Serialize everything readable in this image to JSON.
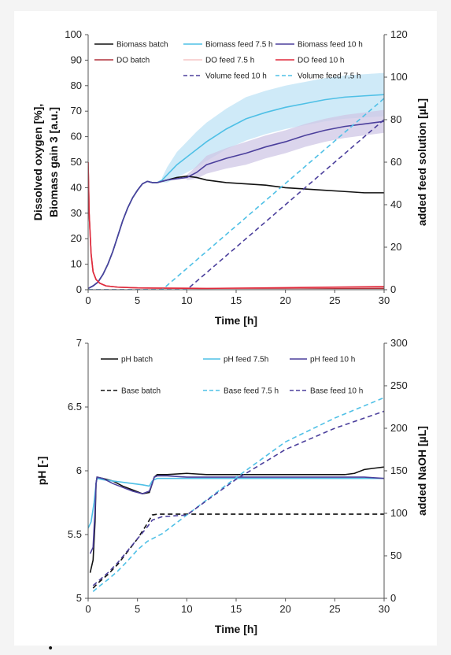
{
  "chart_data": [
    {
      "type": "line",
      "xlabel": "Time   [h]",
      "ylabel": [
        "Dissolved oxygen   [%],",
        "Biomass gain 3   [a.u.]"
      ],
      "y2label": "added feed solution   [µL]",
      "xlim": [
        0,
        30
      ],
      "ylim": [
        0,
        100
      ],
      "y2lim": [
        0,
        120
      ],
      "xticks": [
        0,
        5,
        10,
        15,
        20,
        25,
        30
      ],
      "yticks": [
        0,
        10,
        20,
        30,
        40,
        50,
        60,
        70,
        80,
        90,
        100
      ],
      "y2ticks": [
        0,
        20,
        40,
        60,
        80,
        100,
        120
      ],
      "legend_position": "top",
      "legend_rows": [
        [
          "Biomass batch",
          "Biomass feed 7.5 h",
          "Biomass feed 10 h"
        ],
        [
          "DO batch",
          "DO feed 7.5 h",
          "DO feed 10 h"
        ],
        [
          "",
          "Volume feed 10 h",
          "Volume feed 7.5 h"
        ]
      ],
      "colors": {
        "batch": "#111111",
        "feed75": "#4fc0e6",
        "feed10": "#4b3f9c",
        "do_batch": "#b0303a",
        "do75": "#f6c6c6",
        "do10": "#e0283a",
        "band75": "#bfe3f5",
        "band10": "#cfc7e6"
      },
      "series": [
        {
          "name": "Biomass batch",
          "axis": "left",
          "style": "solid",
          "color": "#111111",
          "x": [
            0,
            0.5,
            1,
            1.5,
            2,
            2.5,
            3,
            3.5,
            4,
            4.5,
            5,
            5.5,
            6,
            6.5,
            7,
            7.5,
            8,
            9,
            10,
            11,
            12,
            14,
            16,
            18,
            20,
            22,
            24,
            26,
            28,
            30
          ],
          "y": [
            0.5,
            1.5,
            3,
            6,
            10,
            15,
            21,
            27,
            32,
            36,
            39,
            41.5,
            42.5,
            42,
            42,
            42.5,
            43,
            44,
            44.5,
            44,
            43,
            42,
            41.5,
            41,
            40,
            39.5,
            39,
            38.5,
            38,
            38
          ]
        },
        {
          "name": "Biomass feed 7.5 h",
          "axis": "left",
          "style": "solid",
          "color": "#4fc0e6",
          "x": [
            0,
            0.5,
            1,
            1.5,
            2,
            2.5,
            3,
            3.5,
            4,
            4.5,
            5,
            5.5,
            6,
            6.5,
            7,
            7.5,
            8,
            9,
            10,
            11,
            12,
            14,
            16,
            18,
            20,
            22,
            24,
            26,
            28,
            30
          ],
          "y": [
            0.5,
            1.5,
            3,
            6,
            10,
            15,
            21,
            27,
            32,
            36,
            39,
            41.5,
            42.5,
            42,
            42,
            43,
            45,
            49,
            52,
            55,
            58,
            63,
            67,
            69.5,
            71.5,
            73,
            74.5,
            75.5,
            76,
            76.5
          ]
        },
        {
          "name": "Biomass feed 10 h",
          "axis": "left",
          "style": "solid",
          "color": "#4b3f9c",
          "x": [
            0,
            0.5,
            1,
            1.5,
            2,
            2.5,
            3,
            3.5,
            4,
            4.5,
            5,
            5.5,
            6,
            6.5,
            7,
            7.5,
            8,
            9,
            10,
            11,
            12,
            14,
            16,
            18,
            20,
            22,
            24,
            26,
            28,
            30
          ],
          "y": [
            0.5,
            1.5,
            3,
            6,
            10,
            15,
            21,
            27,
            32,
            36,
            39,
            41.5,
            42.5,
            42,
            42,
            42.5,
            43,
            43.5,
            44,
            46,
            49,
            51.5,
            53.5,
            56,
            58,
            60.5,
            62.5,
            64,
            65,
            66
          ]
        },
        {
          "name": "DO batch",
          "axis": "left",
          "style": "solid",
          "color": "#b0303a",
          "x": [
            0,
            0.1,
            0.3,
            0.5,
            0.8,
            1.2,
            1.8,
            3,
            5,
            8,
            12,
            20,
            30
          ],
          "y": [
            50,
            30,
            14,
            7,
            4,
            2.5,
            1.5,
            1,
            0.7,
            0.6,
            0.5,
            0.5,
            0.5
          ]
        },
        {
          "name": "DO feed 7.5 h",
          "axis": "left",
          "style": "solid",
          "color": "#f6c6c6",
          "x": [
            0,
            0.1,
            0.3,
            0.5,
            0.8,
            1.2,
            1.8,
            3,
            5,
            8,
            12,
            20,
            30
          ],
          "y": [
            50,
            30,
            14,
            7,
            4,
            2.5,
            1.5,
            1,
            0.7,
            0.6,
            0.5,
            0.7,
            1
          ]
        },
        {
          "name": "DO feed 10 h",
          "axis": "left",
          "style": "solid",
          "color": "#e0283a",
          "x": [
            0,
            0.1,
            0.3,
            0.5,
            0.8,
            1.2,
            1.8,
            3,
            5,
            8,
            12,
            20,
            30
          ],
          "y": [
            50,
            30,
            14,
            7,
            4,
            2.5,
            1.5,
            1,
            0.7,
            0.6,
            0.5,
            0.8,
            1.2
          ]
        },
        {
          "name": "Volume feed 10 h",
          "axis": "right",
          "style": "dashed",
          "color": "#4b3f9c",
          "x": [
            0,
            10,
            30
          ],
          "y": [
            0,
            0,
            80
          ]
        },
        {
          "name": "Volume feed 7.5 h",
          "axis": "right",
          "style": "dashed",
          "color": "#4fc0e6",
          "x": [
            0,
            7.5,
            30
          ],
          "y": [
            0,
            0,
            90
          ]
        }
      ],
      "bands": [
        {
          "series": "Biomass feed 7.5 h",
          "color": "#bfe3f5",
          "x": [
            7.5,
            8,
            9,
            10,
            11,
            12,
            14,
            16,
            18,
            20,
            22,
            24,
            26,
            28,
            30
          ],
          "half_width": [
            1,
            3,
            5,
            6,
            7,
            7.5,
            8,
            8.5,
            8.5,
            8.5,
            8.5,
            8.5,
            8.5,
            8.5,
            8.5
          ]
        },
        {
          "series": "Biomass feed 10 h",
          "color": "#cfc7e6",
          "x": [
            10,
            11,
            12,
            14,
            16,
            18,
            20,
            22,
            24,
            26,
            28,
            30
          ],
          "half_width": [
            1,
            2.5,
            3.5,
            4,
            4.5,
            4.5,
            4.5,
            4.5,
            4.5,
            4.5,
            4.5,
            4.5
          ]
        }
      ]
    },
    {
      "type": "line",
      "xlabel": "Time   [h]",
      "ylabel": "pH   [-]",
      "y2label": "added NaOH   [µL]",
      "xlim": [
        0,
        30
      ],
      "ylim": [
        5,
        7
      ],
      "y2lim": [
        0,
        300
      ],
      "xticks": [
        0,
        5,
        10,
        15,
        20,
        25,
        30
      ],
      "yticks": [
        5,
        5.5,
        6,
        6.5,
        7
      ],
      "ytick_labels": [
        "5",
        "5.5",
        "6",
        "6.5",
        "7"
      ],
      "y2ticks": [
        0,
        50,
        100,
        150,
        200,
        250,
        300
      ],
      "legend_position": "top",
      "legend_rows": [
        [
          "pH batch",
          "pH feed 7.5h",
          "pH feed 10 h"
        ],
        [
          "Base batch",
          "Base feed 7.5 h",
          "Base feed 10 h"
        ]
      ],
      "series": [
        {
          "name": "pH batch",
          "axis": "left",
          "style": "solid",
          "color": "#111111",
          "x": [
            0.2,
            0.5,
            0.7,
            0.8,
            0.9,
            1.5,
            2.5,
            3.5,
            4.5,
            5.5,
            6.2,
            6.5,
            6.7,
            7,
            8,
            10,
            12,
            15,
            18,
            20,
            22,
            24,
            26,
            27,
            28,
            29,
            30
          ],
          "y": [
            5.2,
            5.3,
            5.6,
            5.9,
            5.95,
            5.94,
            5.92,
            5.88,
            5.85,
            5.82,
            5.83,
            5.9,
            5.95,
            5.97,
            5.97,
            5.98,
            5.97,
            5.97,
            5.97,
            5.97,
            5.97,
            5.97,
            5.97,
            5.98,
            6.01,
            6.02,
            6.03
          ]
        },
        {
          "name": "pH feed 7.5h",
          "axis": "left",
          "style": "solid",
          "color": "#4fc0e6",
          "x": [
            0,
            0.3,
            0.6,
            0.8,
            0.9,
            1.5,
            2.5,
            3.5,
            4.5,
            5.5,
            6.2,
            6.5,
            6.7,
            7,
            8,
            10,
            12,
            15,
            18,
            20,
            22,
            24,
            26,
            28,
            30
          ],
          "y": [
            5.55,
            5.6,
            5.75,
            5.9,
            5.94,
            5.93,
            5.92,
            5.91,
            5.9,
            5.89,
            5.88,
            5.92,
            5.93,
            5.94,
            5.94,
            5.94,
            5.94,
            5.94,
            5.94,
            5.94,
            5.94,
            5.94,
            5.94,
            5.94,
            5.94
          ]
        },
        {
          "name": "pH feed 10 h",
          "axis": "left",
          "style": "solid",
          "color": "#4b3f9c",
          "x": [
            0.2,
            0.5,
            0.7,
            0.8,
            0.9,
            1.5,
            2.5,
            3.5,
            4.5,
            5.5,
            6.2,
            6.5,
            6.7,
            7,
            8,
            10,
            12,
            15,
            18,
            20,
            22,
            24,
            26,
            28,
            30
          ],
          "y": [
            5.35,
            5.4,
            5.7,
            5.9,
            5.95,
            5.94,
            5.9,
            5.87,
            5.84,
            5.82,
            5.84,
            5.9,
            5.95,
            5.96,
            5.96,
            5.95,
            5.95,
            5.95,
            5.95,
            5.95,
            5.95,
            5.95,
            5.95,
            5.95,
            5.94
          ]
        },
        {
          "name": "Base batch",
          "axis": "right",
          "style": "dashed",
          "color": "#111111",
          "x": [
            0.5,
            1,
            2,
            3,
            4,
            5,
            6,
            6.5,
            7,
            10,
            15,
            20,
            25,
            30
          ],
          "y": [
            12,
            18,
            28,
            40,
            55,
            70,
            88,
            98,
            99,
            99,
            99,
            99,
            99,
            99
          ]
        },
        {
          "name": "Base feed 7.5 h",
          "axis": "right",
          "style": "dashed",
          "color": "#4fc0e6",
          "x": [
            0.5,
            1,
            2,
            3,
            4,
            5,
            6,
            6.5,
            7.5,
            10,
            15,
            20,
            25,
            30
          ],
          "y": [
            8,
            13,
            22,
            32,
            44,
            57,
            67,
            70,
            76,
            98,
            142,
            184,
            212,
            236
          ]
        },
        {
          "name": "Base feed 10 h",
          "axis": "right",
          "style": "dashed",
          "color": "#4b3f9c",
          "x": [
            0.5,
            1,
            2,
            3,
            4,
            5,
            6,
            6.5,
            7.5,
            10,
            15,
            20,
            25,
            30
          ],
          "y": [
            15,
            20,
            30,
            42,
            56,
            70,
            84,
            92,
            96,
            98,
            140,
            175,
            200,
            220
          ]
        }
      ]
    }
  ],
  "bullet": "•"
}
